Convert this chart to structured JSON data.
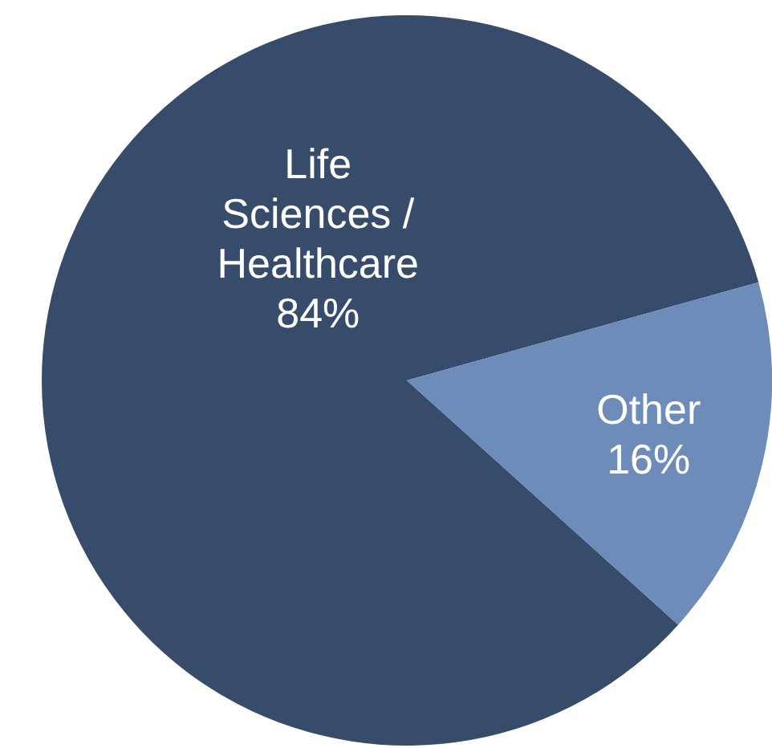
{
  "chart_data": {
    "type": "pie",
    "categories": [
      "Life Sciences / Healthcare",
      "Other"
    ],
    "values": [
      84,
      16
    ],
    "colors": [
      "#374c6b",
      "#6d8cb9"
    ],
    "value_labels": [
      "84%",
      "16%"
    ],
    "legend": false
  }
}
